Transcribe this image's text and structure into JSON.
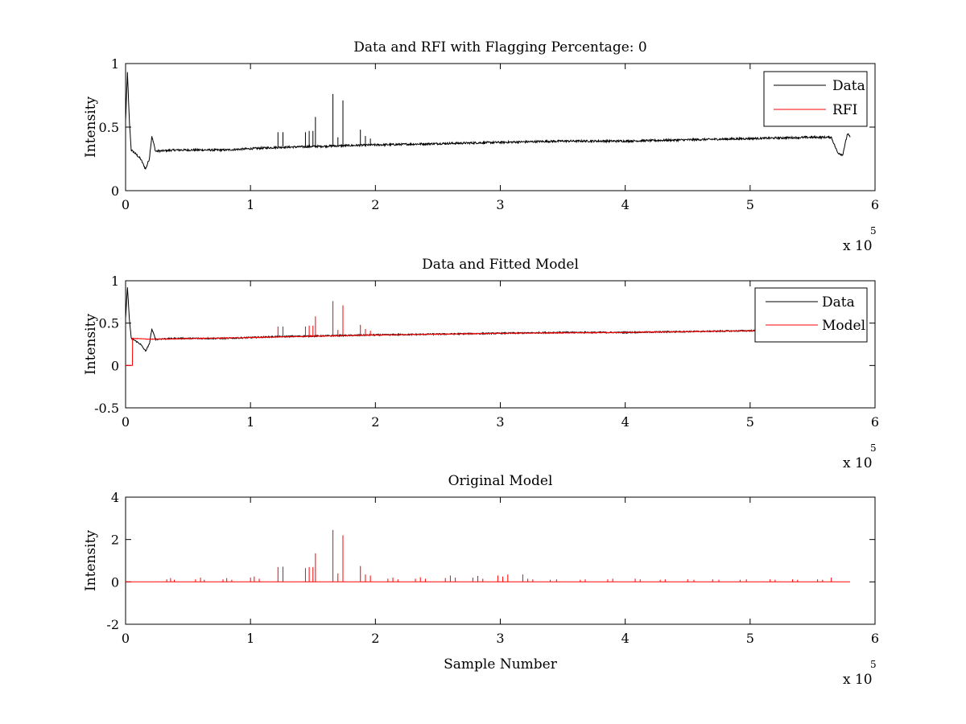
{
  "chart_data": [
    {
      "type": "line",
      "title": "Data and RFI with Flagging Percentage: 0",
      "xlabel": "",
      "ylabel": "Intensity",
      "xlim": [
        0,
        600000
      ],
      "ylim": [
        0,
        1
      ],
      "xticks": [
        "0",
        "1",
        "2",
        "3",
        "4",
        "5",
        "6"
      ],
      "yticks": [
        "0",
        "0.5",
        "1"
      ],
      "yticks_values": [
        0,
        0.5,
        1
      ],
      "x_multiplier": "x 10",
      "x_multiplier_exp": "5",
      "legend": {
        "placement": "top-right",
        "entries": [
          "Data",
          "RFI"
        ]
      },
      "series": [
        {
          "name": "Data",
          "color": "#000000",
          "kind": "data",
          "x": [
            0,
            1500,
            3000,
            4500,
            7000,
            12000,
            16000,
            19000,
            21000,
            24000,
            40000,
            80000,
            120000,
            160000,
            200000,
            250000,
            300000,
            350000,
            400000,
            450000,
            500000,
            550000,
            565000,
            570000,
            574000,
            578000,
            580000
          ],
          "y": [
            0.55,
            0.93,
            0.55,
            0.32,
            0.3,
            0.25,
            0.17,
            0.25,
            0.43,
            0.31,
            0.32,
            0.32,
            0.34,
            0.35,
            0.36,
            0.37,
            0.38,
            0.39,
            0.39,
            0.4,
            0.41,
            0.42,
            0.42,
            0.3,
            0.28,
            0.45,
            0.42
          ],
          "noise": 0.008,
          "spikes": [
            {
              "x": 122000,
              "y": 0.46
            },
            {
              "x": 126000,
              "y": 0.46
            },
            {
              "x": 144000,
              "y": 0.46
            },
            {
              "x": 147000,
              "y": 0.47
            },
            {
              "x": 150000,
              "y": 0.47
            },
            {
              "x": 152000,
              "y": 0.58
            },
            {
              "x": 166000,
              "y": 0.76
            },
            {
              "x": 170000,
              "y": 0.42
            },
            {
              "x": 174000,
              "y": 0.71
            },
            {
              "x": 188000,
              "y": 0.48
            },
            {
              "x": 192000,
              "y": 0.43
            },
            {
              "x": 196000,
              "y": 0.41
            }
          ]
        },
        {
          "name": "RFI",
          "color": "#ff0000",
          "kind": "empty"
        }
      ]
    },
    {
      "type": "line",
      "title": "Data and Fitted Model",
      "xlabel": "",
      "ylabel": "Intensity",
      "xlim": [
        0,
        600000
      ],
      "ylim": [
        -0.5,
        1
      ],
      "xticks": [
        "0",
        "1",
        "2",
        "3",
        "4",
        "5",
        "6"
      ],
      "yticks": [
        "-0.5",
        "0",
        "0.5",
        "1"
      ],
      "yticks_values": [
        -0.5,
        0,
        0.5,
        1
      ],
      "x_multiplier": "x 10",
      "x_multiplier_exp": "5",
      "legend": {
        "placement": "top-right",
        "entries": [
          "Data",
          "Model"
        ]
      },
      "series": [
        {
          "name": "Data",
          "color": "#000000",
          "kind": "data",
          "x": [
            0,
            1500,
            3000,
            4500,
            7000,
            12000,
            16000,
            19000,
            21000,
            24000,
            40000,
            80000,
            120000,
            160000,
            200000,
            250000,
            300000,
            350000,
            400000,
            450000,
            500000,
            550000,
            565000,
            570000,
            574000,
            578000,
            580000
          ],
          "y": [
            0.55,
            0.93,
            0.55,
            0.32,
            0.3,
            0.25,
            0.17,
            0.25,
            0.43,
            0.31,
            0.32,
            0.32,
            0.34,
            0.35,
            0.36,
            0.37,
            0.38,
            0.39,
            0.39,
            0.4,
            0.41,
            0.42,
            0.42,
            0.3,
            0.28,
            0.45,
            0.42
          ],
          "noise": 0.008,
          "spikes": []
        },
        {
          "name": "Model",
          "color": "#ff0000",
          "kind": "model",
          "x": [
            0,
            5500,
            5600,
            20000,
            100000,
            200000,
            300000,
            400000,
            500000,
            580000
          ],
          "y": [
            0,
            0,
            0.32,
            0.31,
            0.33,
            0.36,
            0.38,
            0.39,
            0.41,
            0.42
          ],
          "noise": 0.004,
          "spikes": [
            {
              "x": 122000,
              "y": 0.46
            },
            {
              "x": 126000,
              "y": 0.46
            },
            {
              "x": 144000,
              "y": 0.46
            },
            {
              "x": 147000,
              "y": 0.47
            },
            {
              "x": 150000,
              "y": 0.47
            },
            {
              "x": 152000,
              "y": 0.58
            },
            {
              "x": 166000,
              "y": 0.76
            },
            {
              "x": 170000,
              "y": 0.42
            },
            {
              "x": 174000,
              "y": 0.71
            },
            {
              "x": 188000,
              "y": 0.48
            },
            {
              "x": 192000,
              "y": 0.43
            },
            {
              "x": 196000,
              "y": 0.41
            }
          ]
        }
      ]
    },
    {
      "type": "line",
      "title": "Original Model",
      "xlabel": "Sample Number",
      "ylabel": "Intensity",
      "xlim": [
        0,
        600000
      ],
      "ylim": [
        -2,
        4
      ],
      "xticks": [
        "0",
        "1",
        "2",
        "3",
        "4",
        "5",
        "6"
      ],
      "yticks": [
        "-2",
        "0",
        "2",
        "4"
      ],
      "yticks_values": [
        -2,
        0,
        2,
        4
      ],
      "x_multiplier": "x 10",
      "x_multiplier_exp": "5",
      "legend": null,
      "series": [
        {
          "name": "",
          "color": "#ff0000",
          "kind": "model",
          "x": [
            0,
            580000
          ],
          "y": [
            0,
            0
          ],
          "noise": 0,
          "spikes": [
            {
              "x": 33000,
              "y": 0.12
            },
            {
              "x": 36000,
              "y": 0.18
            },
            {
              "x": 39000,
              "y": 0.1
            },
            {
              "x": 56000,
              "y": 0.12
            },
            {
              "x": 60000,
              "y": 0.2
            },
            {
              "x": 63000,
              "y": 0.1
            },
            {
              "x": 78000,
              "y": 0.12
            },
            {
              "x": 81000,
              "y": 0.18
            },
            {
              "x": 85000,
              "y": 0.1
            },
            {
              "x": 100000,
              "y": 0.2
            },
            {
              "x": 103000,
              "y": 0.25
            },
            {
              "x": 107000,
              "y": 0.15
            },
            {
              "x": 122000,
              "y": 0.7
            },
            {
              "x": 126000,
              "y": 0.72
            },
            {
              "x": 144000,
              "y": 0.65
            },
            {
              "x": 147000,
              "y": 0.7
            },
            {
              "x": 150000,
              "y": 0.7
            },
            {
              "x": 152000,
              "y": 1.35
            },
            {
              "x": 166000,
              "y": 2.45
            },
            {
              "x": 170000,
              "y": 0.4
            },
            {
              "x": 174000,
              "y": 2.2
            },
            {
              "x": 188000,
              "y": 0.75
            },
            {
              "x": 192000,
              "y": 0.35
            },
            {
              "x": 196000,
              "y": 0.3
            },
            {
              "x": 210000,
              "y": 0.15
            },
            {
              "x": 214000,
              "y": 0.2
            },
            {
              "x": 218000,
              "y": 0.12
            },
            {
              "x": 232000,
              "y": 0.15
            },
            {
              "x": 236000,
              "y": 0.22
            },
            {
              "x": 240000,
              "y": 0.15
            },
            {
              "x": 256000,
              "y": 0.18
            },
            {
              "x": 260000,
              "y": 0.3
            },
            {
              "x": 264000,
              "y": 0.2
            },
            {
              "x": 278000,
              "y": 0.2
            },
            {
              "x": 282000,
              "y": 0.28
            },
            {
              "x": 286000,
              "y": 0.15
            },
            {
              "x": 298000,
              "y": 0.3
            },
            {
              "x": 302000,
              "y": 0.25
            },
            {
              "x": 306000,
              "y": 0.35
            },
            {
              "x": 318000,
              "y": 0.35
            },
            {
              "x": 322000,
              "y": 0.15
            },
            {
              "x": 326000,
              "y": 0.12
            },
            {
              "x": 340000,
              "y": 0.1
            },
            {
              "x": 345000,
              "y": 0.12
            },
            {
              "x": 364000,
              "y": 0.1
            },
            {
              "x": 368000,
              "y": 0.12
            },
            {
              "x": 386000,
              "y": 0.12
            },
            {
              "x": 390000,
              "y": 0.15
            },
            {
              "x": 408000,
              "y": 0.15
            },
            {
              "x": 412000,
              "y": 0.12
            },
            {
              "x": 428000,
              "y": 0.1
            },
            {
              "x": 432000,
              "y": 0.12
            },
            {
              "x": 450000,
              "y": 0.12
            },
            {
              "x": 455000,
              "y": 0.1
            },
            {
              "x": 470000,
              "y": 0.12
            },
            {
              "x": 475000,
              "y": 0.1
            },
            {
              "x": 492000,
              "y": 0.1
            },
            {
              "x": 497000,
              "y": 0.12
            },
            {
              "x": 516000,
              "y": 0.12
            },
            {
              "x": 520000,
              "y": 0.1
            },
            {
              "x": 534000,
              "y": 0.12
            },
            {
              "x": 538000,
              "y": 0.1
            },
            {
              "x": 554000,
              "y": 0.12
            },
            {
              "x": 558000,
              "y": 0.1
            },
            {
              "x": 565000,
              "y": 0.2
            }
          ]
        }
      ]
    }
  ]
}
